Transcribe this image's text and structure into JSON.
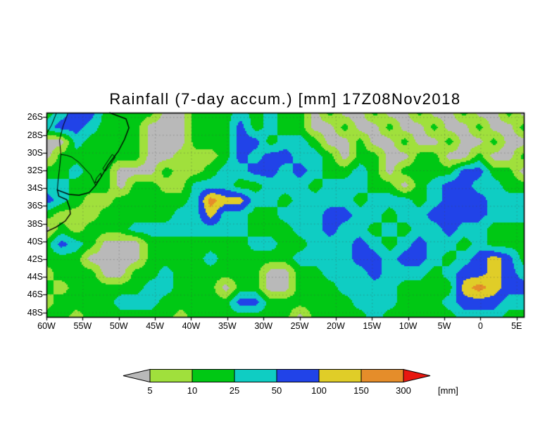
{
  "chart_data": {
    "type": "heatmap",
    "title": "Rainfall (7-day accum.) [mm] 17Z08Nov2018",
    "unit": "[mm]",
    "x_axis": "longitude",
    "y_axis": "latitude",
    "lon_range": [
      -60,
      6
    ],
    "lat_range": [
      -48.5,
      -25.5
    ],
    "x_tick_labels": [
      "60W",
      "55W",
      "50W",
      "45W",
      "40W",
      "35W",
      "30W",
      "25W",
      "20W",
      "15W",
      "10W",
      "5W",
      "0",
      "5E"
    ],
    "x_tick_lons": [
      -60,
      -55,
      -50,
      -45,
      -40,
      -35,
      -30,
      -25,
      -20,
      -15,
      -10,
      -5,
      0,
      5
    ],
    "y_tick_labels": [
      "26S",
      "28S",
      "30S",
      "32S",
      "34S",
      "36S",
      "38S",
      "40S",
      "42S",
      "44S",
      "46S",
      "48S"
    ],
    "y_tick_lats": [
      -26,
      -28,
      -30,
      -32,
      -34,
      -36,
      -38,
      -40,
      -42,
      -44,
      -46,
      -48
    ],
    "levels": [
      5,
      10,
      25,
      50,
      100,
      150,
      300
    ],
    "band_ranges": [
      "<5",
      "5-10",
      "10-25",
      "25-50",
      "50-100",
      "100-150",
      "150-300",
      ">300"
    ],
    "band_colors": [
      "#b9b9b9",
      "#a0e03c",
      "#00c814",
      "#0fcdc3",
      "#2143e8",
      "#e0cd28",
      "#e58d2a",
      "#e81810"
    ],
    "graticule": "dotted",
    "legend_position": "bottom",
    "grid_note": "rainfall band index 0-7 on a 2deg lon x 1.53deg lat grid; row 0 = 25.5S-27S starting at 60W",
    "grid": [
      [
        2,
        3,
        4,
        4,
        2,
        2,
        2,
        2,
        0,
        0,
        2,
        2,
        2,
        3,
        2,
        3,
        2,
        2,
        0,
        2,
        0,
        0,
        2,
        0,
        0,
        2,
        0,
        0,
        2,
        0,
        0,
        2,
        0
      ],
      [
        3,
        4,
        4,
        3,
        2,
        2,
        2,
        0,
        0,
        0,
        2,
        2,
        2,
        4,
        2,
        3,
        2,
        2,
        0,
        0,
        2,
        0,
        0,
        2,
        0,
        0,
        2,
        0,
        0,
        2,
        0,
        0,
        2
      ],
      [
        0,
        0,
        3,
        2,
        2,
        2,
        2,
        0,
        0,
        0,
        2,
        2,
        2,
        4,
        4,
        2,
        3,
        3,
        2,
        0,
        0,
        2,
        0,
        0,
        2,
        0,
        0,
        2,
        0,
        0,
        2,
        0,
        0
      ],
      [
        0,
        2,
        2,
        2,
        2,
        2,
        2,
        0,
        0,
        1,
        1,
        1,
        2,
        4,
        3,
        4,
        4,
        3,
        3,
        2,
        0,
        2,
        2,
        0,
        0,
        2,
        2,
        0,
        0,
        2,
        0,
        0,
        2
      ],
      [
        2,
        2,
        3,
        2,
        2,
        0,
        0,
        0,
        2,
        1,
        1,
        2,
        3,
        3,
        4,
        4,
        3,
        4,
        3,
        2,
        2,
        3,
        2,
        0,
        2,
        2,
        2,
        2,
        4,
        4,
        2,
        2,
        0
      ],
      [
        3,
        3,
        2,
        2,
        2,
        0,
        2,
        2,
        1,
        1,
        3,
        3,
        3,
        2,
        2,
        3,
        3,
        3,
        2,
        3,
        3,
        3,
        2,
        2,
        0,
        2,
        3,
        4,
        4,
        3,
        3,
        2,
        2
      ],
      [
        4,
        3,
        2,
        1,
        1,
        2,
        2,
        2,
        2,
        2,
        3,
        6,
        5,
        5,
        3,
        3,
        2,
        3,
        3,
        3,
        3,
        2,
        3,
        3,
        3,
        2,
        3,
        4,
        4,
        4,
        3,
        3,
        3
      ],
      [
        2,
        1,
        1,
        1,
        2,
        2,
        2,
        2,
        2,
        3,
        3,
        5,
        3,
        3,
        2,
        2,
        3,
        3,
        3,
        4,
        4,
        3,
        3,
        2,
        3,
        3,
        4,
        4,
        4,
        4,
        3,
        3,
        3
      ],
      [
        0,
        2,
        1,
        2,
        2,
        2,
        3,
        3,
        3,
        3,
        3,
        3,
        3,
        3,
        2,
        2,
        2,
        3,
        3,
        4,
        3,
        3,
        2,
        3,
        2,
        3,
        3,
        4,
        3,
        3,
        2,
        2,
        2
      ],
      [
        2,
        4,
        3,
        2,
        0,
        0,
        0,
        2,
        2,
        2,
        2,
        2,
        2,
        2,
        3,
        3,
        2,
        2,
        3,
        3,
        3,
        4,
        3,
        2,
        3,
        4,
        3,
        3,
        2,
        3,
        2,
        2,
        2
      ],
      [
        2,
        2,
        2,
        0,
        0,
        0,
        0,
        2,
        2,
        2,
        2,
        3,
        2,
        2,
        2,
        2,
        2,
        3,
        3,
        3,
        3,
        4,
        4,
        3,
        4,
        4,
        3,
        2,
        3,
        4,
        5,
        4,
        2
      ],
      [
        1,
        2,
        2,
        2,
        0,
        0,
        2,
        2,
        3,
        2,
        2,
        2,
        2,
        2,
        2,
        0,
        0,
        2,
        2,
        3,
        3,
        3,
        4,
        3,
        3,
        3,
        2,
        3,
        4,
        4,
        5,
        4,
        3
      ],
      [
        2,
        1,
        2,
        2,
        2,
        2,
        2,
        3,
        3,
        2,
        2,
        2,
        0,
        2,
        2,
        0,
        0,
        2,
        2,
        2,
        3,
        3,
        3,
        3,
        2,
        2,
        2,
        2,
        5,
        6,
        5,
        4,
        4
      ],
      [
        1,
        2,
        2,
        2,
        2,
        3,
        3,
        3,
        2,
        2,
        2,
        2,
        2,
        4,
        4,
        2,
        2,
        2,
        2,
        2,
        2,
        3,
        3,
        3,
        2,
        2,
        2,
        3,
        4,
        4,
        4,
        3,
        3
      ],
      [
        2,
        2,
        1,
        2,
        2,
        2,
        2,
        2,
        2,
        1,
        2,
        2,
        2,
        2,
        2,
        2,
        2,
        0,
        2,
        2,
        2,
        2,
        3,
        2,
        2,
        2,
        2,
        2,
        3,
        3,
        3,
        2,
        2
      ]
    ],
    "coastline": [
      [
        -51.3,
        -25.5
      ],
      [
        -49.0,
        -26.2
      ],
      [
        -48.6,
        -27.2
      ],
      [
        -49.2,
        -28.5
      ],
      [
        -50.1,
        -29.9
      ],
      [
        -51.5,
        -31.4
      ],
      [
        -52.2,
        -32.4
      ],
      [
        -53.2,
        -33.7
      ],
      [
        -54.1,
        -34.5
      ],
      [
        -55.5,
        -34.8
      ],
      [
        -56.9,
        -34.7
      ],
      [
        -57.9,
        -34.4
      ],
      [
        -58.5,
        -34.2
      ],
      [
        -58.3,
        -34.9
      ],
      [
        -57.2,
        -35.3
      ],
      [
        -56.8,
        -36.2
      ],
      [
        -56.7,
        -36.9
      ],
      [
        -57.4,
        -37.7
      ],
      [
        -58.7,
        -38.4
      ],
      [
        -60.0,
        -38.9
      ]
    ],
    "borders": [
      [
        [
          -57.0,
          -25.5
        ],
        [
          -57.7,
          -27.0
        ],
        [
          -58.2,
          -28.6
        ],
        [
          -58.0,
          -30.2
        ],
        [
          -58.2,
          -31.8
        ],
        [
          -58.4,
          -33.2
        ],
        [
          -58.5,
          -34.2
        ]
      ],
      [
        [
          -53.2,
          -33.7
        ],
        [
          -53.9,
          -32.5
        ],
        [
          -55.5,
          -31.1
        ],
        [
          -56.5,
          -30.5
        ],
        [
          -57.2,
          -30.3
        ],
        [
          -58.0,
          -30.2
        ]
      ],
      [
        [
          -58.6,
          -25.5
        ],
        [
          -59.3,
          -26.9
        ],
        [
          -60.0,
          -27.9
        ]
      ]
    ],
    "lakes": [
      [
        [
          -50.9,
          -30.2
        ],
        [
          -50.5,
          -30.5
        ],
        [
          -51.2,
          -31.4
        ],
        [
          -51.9,
          -32.1
        ],
        [
          -52.2,
          -31.8
        ],
        [
          -51.4,
          -30.8
        ]
      ],
      [
        [
          -52.5,
          -32.3
        ],
        [
          -52.4,
          -32.7
        ],
        [
          -53.0,
          -33.3
        ],
        [
          -53.3,
          -33.4
        ],
        [
          -53.1,
          -32.9
        ]
      ]
    ]
  },
  "colorbar": {
    "tick_labels": [
      "5",
      "10",
      "25",
      "50",
      "100",
      "150",
      "300"
    ],
    "unit": "[mm]"
  }
}
